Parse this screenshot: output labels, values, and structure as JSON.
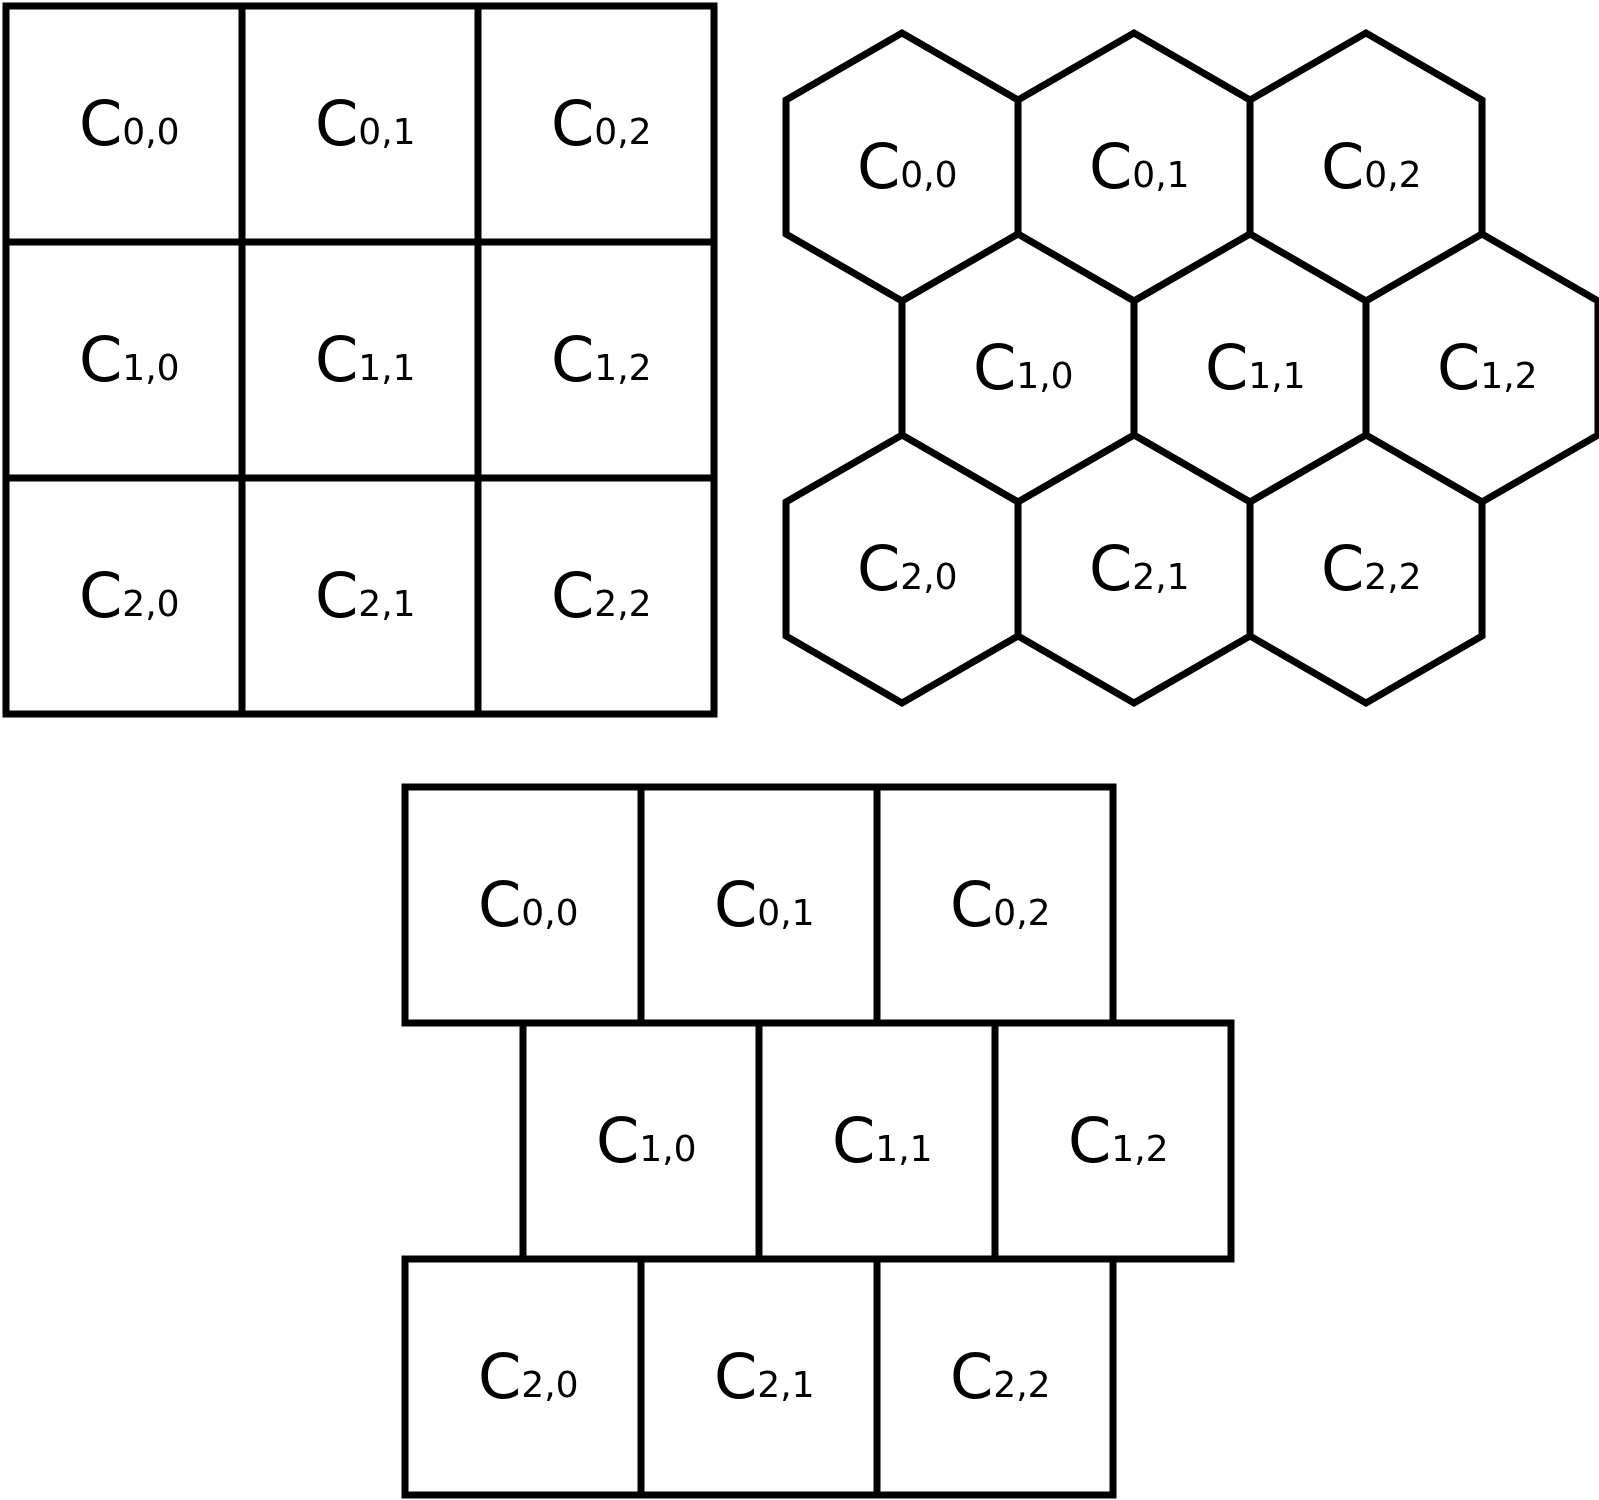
{
  "colors": {
    "background": "#ffffff",
    "stroke": "#000000",
    "text": "#000000"
  },
  "grids": [
    {
      "id": "square-grid",
      "cell_shape": "square",
      "cells": [
        {
          "letter": "C",
          "index": "0,0"
        },
        {
          "letter": "C",
          "index": "0,1"
        },
        {
          "letter": "C",
          "index": "0,2"
        },
        {
          "letter": "C",
          "index": "1,0"
        },
        {
          "letter": "C",
          "index": "1,1"
        },
        {
          "letter": "C",
          "index": "1,2"
        },
        {
          "letter": "C",
          "index": "2,0"
        },
        {
          "letter": "C",
          "index": "2,1"
        },
        {
          "letter": "C",
          "index": "2,2"
        }
      ]
    },
    {
      "id": "hexagonal-grid",
      "cell_shape": "hexagon",
      "cells": [
        {
          "letter": "C",
          "index": "0,0"
        },
        {
          "letter": "C",
          "index": "0,1"
        },
        {
          "letter": "C",
          "index": "0,2"
        },
        {
          "letter": "C",
          "index": "1,0"
        },
        {
          "letter": "C",
          "index": "1,1"
        },
        {
          "letter": "C",
          "index": "1,2"
        },
        {
          "letter": "C",
          "index": "2,0"
        },
        {
          "letter": "C",
          "index": "2,1"
        },
        {
          "letter": "C",
          "index": "2,2"
        }
      ]
    },
    {
      "id": "offset-square-grid",
      "cell_shape": "square",
      "cells": [
        {
          "letter": "C",
          "index": "0,0"
        },
        {
          "letter": "C",
          "index": "0,1"
        },
        {
          "letter": "C",
          "index": "0,2"
        },
        {
          "letter": "C",
          "index": "1,0"
        },
        {
          "letter": "C",
          "index": "1,1"
        },
        {
          "letter": "C",
          "index": "1,2"
        },
        {
          "letter": "C",
          "index": "2,0"
        },
        {
          "letter": "C",
          "index": "2,1"
        },
        {
          "letter": "C",
          "index": "2,2"
        }
      ]
    }
  ]
}
